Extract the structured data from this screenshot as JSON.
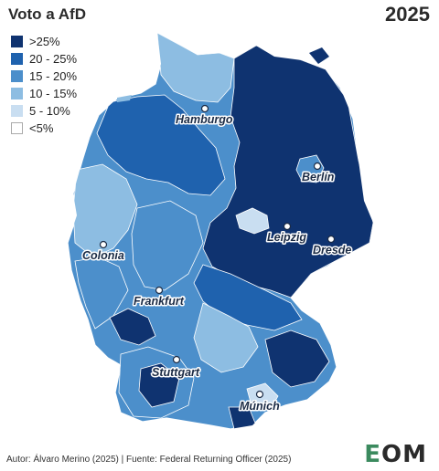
{
  "title": "Voto a AfD",
  "year": "2025",
  "legend": [
    {
      "label": ">25%",
      "color": "#0f3370"
    },
    {
      "label": "20 - 25%",
      "color": "#1f62ae"
    },
    {
      "label": "15 - 20%",
      "color": "#4c8fcb"
    },
    {
      "label": "10 - 15%",
      "color": "#8dbde2"
    },
    {
      "label": "5 - 10%",
      "color": "#c9def1"
    },
    {
      "label": "<5%",
      "color": "#ffffff"
    }
  ],
  "cities": [
    {
      "name": "Hamburgo"
    },
    {
      "name": "Berlín"
    },
    {
      "name": "Leipzig"
    },
    {
      "name": "Dresde"
    },
    {
      "name": "Colonia"
    },
    {
      "name": "Frankfurt"
    },
    {
      "name": "Stuttgart"
    },
    {
      "name": "Múnich"
    }
  ],
  "footer": "Autor: Álvaro Merino (2025) | Fuente: Federal Returning Officer (2025)",
  "logo": {
    "left": "E",
    "right": "M"
  }
}
